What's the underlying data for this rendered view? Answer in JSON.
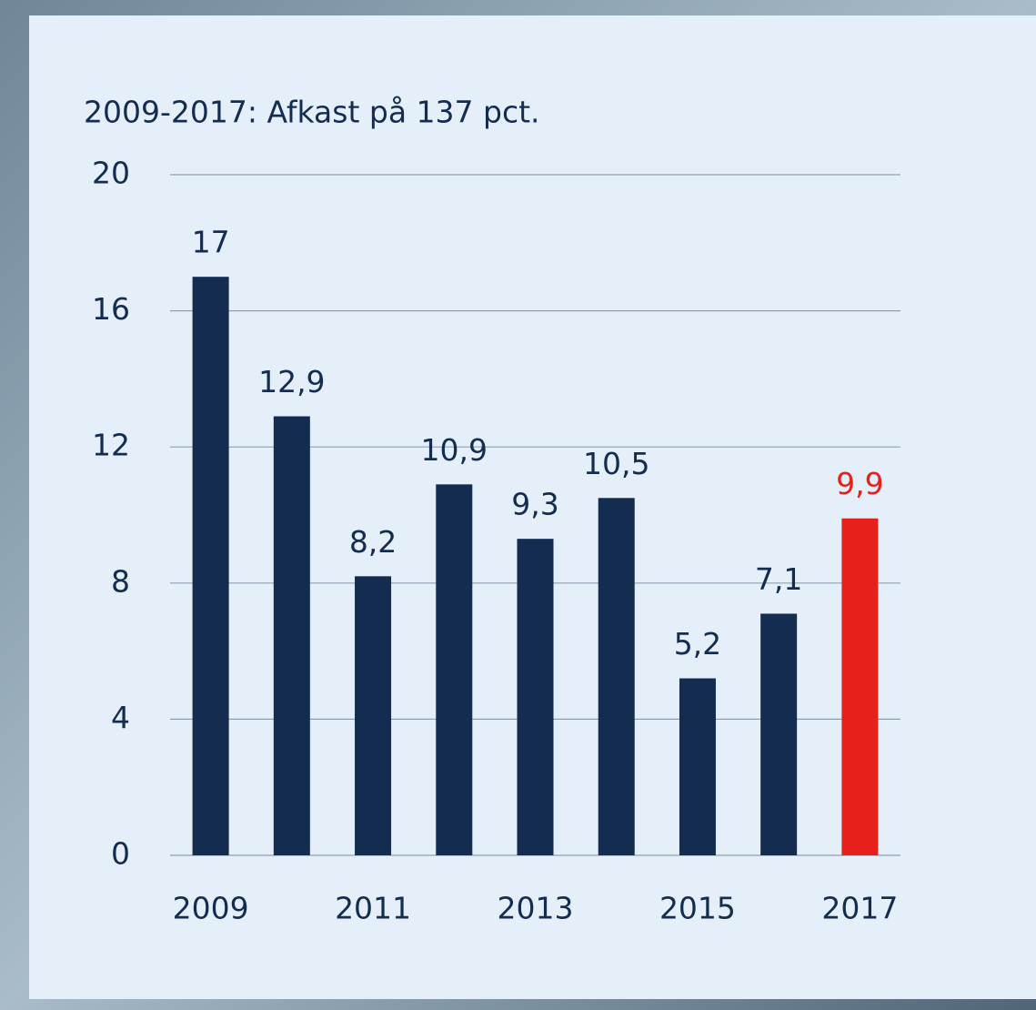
{
  "chart_data": {
    "type": "bar",
    "title": "2009-2017: Afkast på 137 pct.",
    "categories": [
      "2009",
      null,
      "2011",
      null,
      "2013",
      null,
      "2015",
      null,
      "2017"
    ],
    "values": [
      17,
      12.9,
      8.2,
      10.9,
      9.3,
      10.5,
      5.2,
      7.1,
      9.9
    ],
    "value_labels": [
      "17",
      "12,9",
      "8,2",
      "10,9",
      "9,3",
      "10,5",
      "5,2",
      "7,1",
      "9,9"
    ],
    "colors": [
      "#142c4f",
      "#142c4f",
      "#142c4f",
      "#142c4f",
      "#142c4f",
      "#142c4f",
      "#142c4f",
      "#142c4f",
      "#e8201c"
    ],
    "ylim": [
      0,
      20
    ],
    "yticks": [
      0,
      4,
      8,
      12,
      16,
      20
    ],
    "grid": true
  }
}
